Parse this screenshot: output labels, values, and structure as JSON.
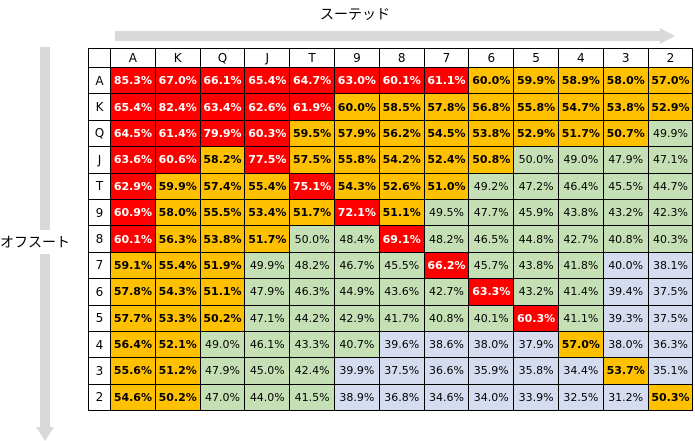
{
  "suited_label": "スーテッド",
  "offsuit_label": "オフスート",
  "columns": [
    "A",
    "K",
    "Q",
    "J",
    "T",
    "9",
    "8",
    "7",
    "6",
    "5",
    "4",
    "3",
    "2"
  ],
  "rows": [
    "A",
    "K",
    "Q",
    "J",
    "T",
    "9",
    "8",
    "7",
    "6",
    "5",
    "4",
    "3",
    "2"
  ],
  "colors": {
    "red": "#ff0000",
    "orange": "#ffc000",
    "green": "#c5e0b4",
    "blue": "#d6dcf0"
  },
  "cells": [
    [
      [
        "85.3%",
        "red"
      ],
      [
        "67.0%",
        "red"
      ],
      [
        "66.1%",
        "red"
      ],
      [
        "65.4%",
        "red"
      ],
      [
        "64.7%",
        "red"
      ],
      [
        "63.0%",
        "red"
      ],
      [
        "60.1%",
        "red"
      ],
      [
        "61.1%",
        "red"
      ],
      [
        "60.0%",
        "org"
      ],
      [
        "59.9%",
        "org"
      ],
      [
        "58.9%",
        "org"
      ],
      [
        "58.0%",
        "org"
      ],
      [
        "57.0%",
        "org"
      ]
    ],
    [
      [
        "65.4%",
        "red"
      ],
      [
        "82.4%",
        "red"
      ],
      [
        "63.4%",
        "red"
      ],
      [
        "62.6%",
        "red"
      ],
      [
        "61.9%",
        "red"
      ],
      [
        "60.0%",
        "org"
      ],
      [
        "58.5%",
        "org"
      ],
      [
        "57.8%",
        "org"
      ],
      [
        "56.8%",
        "org"
      ],
      [
        "55.8%",
        "org"
      ],
      [
        "54.7%",
        "org"
      ],
      [
        "53.8%",
        "org"
      ],
      [
        "52.9%",
        "org"
      ]
    ],
    [
      [
        "64.5%",
        "red"
      ],
      [
        "61.4%",
        "red"
      ],
      [
        "79.9%",
        "red"
      ],
      [
        "60.3%",
        "red"
      ],
      [
        "59.5%",
        "org"
      ],
      [
        "57.9%",
        "org"
      ],
      [
        "56.2%",
        "org"
      ],
      [
        "54.5%",
        "org"
      ],
      [
        "53.8%",
        "org"
      ],
      [
        "52.9%",
        "org"
      ],
      [
        "51.7%",
        "org"
      ],
      [
        "50.7%",
        "org"
      ],
      [
        "49.9%",
        "grn"
      ]
    ],
    [
      [
        "63.6%",
        "red"
      ],
      [
        "60.6%",
        "red"
      ],
      [
        "58.2%",
        "org"
      ],
      [
        "77.5%",
        "red"
      ],
      [
        "57.5%",
        "org"
      ],
      [
        "55.8%",
        "org"
      ],
      [
        "54.2%",
        "org"
      ],
      [
        "52.4%",
        "org"
      ],
      [
        "50.8%",
        "org"
      ],
      [
        "50.0%",
        "grn"
      ],
      [
        "49.0%",
        "grn"
      ],
      [
        "47.9%",
        "grn"
      ],
      [
        "47.1%",
        "grn"
      ]
    ],
    [
      [
        "62.9%",
        "red"
      ],
      [
        "59.9%",
        "org"
      ],
      [
        "57.4%",
        "org"
      ],
      [
        "55.4%",
        "org"
      ],
      [
        "75.1%",
        "red"
      ],
      [
        "54.3%",
        "org"
      ],
      [
        "52.6%",
        "org"
      ],
      [
        "51.0%",
        "org"
      ],
      [
        "49.2%",
        "grn"
      ],
      [
        "47.2%",
        "grn"
      ],
      [
        "46.4%",
        "grn"
      ],
      [
        "45.5%",
        "grn"
      ],
      [
        "44.7%",
        "grn"
      ]
    ],
    [
      [
        "60.9%",
        "red"
      ],
      [
        "58.0%",
        "org"
      ],
      [
        "55.5%",
        "org"
      ],
      [
        "53.4%",
        "org"
      ],
      [
        "51.7%",
        "org"
      ],
      [
        "72.1%",
        "red"
      ],
      [
        "51.1%",
        "org"
      ],
      [
        "49.5%",
        "grn"
      ],
      [
        "47.7%",
        "grn"
      ],
      [
        "45.9%",
        "grn"
      ],
      [
        "43.8%",
        "grn"
      ],
      [
        "43.2%",
        "grn"
      ],
      [
        "42.3%",
        "grn"
      ]
    ],
    [
      [
        "60.1%",
        "red"
      ],
      [
        "56.3%",
        "org"
      ],
      [
        "53.8%",
        "org"
      ],
      [
        "51.7%",
        "org"
      ],
      [
        "50.0%",
        "grn"
      ],
      [
        "48.4%",
        "grn"
      ],
      [
        "69.1%",
        "red"
      ],
      [
        "48.2%",
        "grn"
      ],
      [
        "46.5%",
        "grn"
      ],
      [
        "44.8%",
        "grn"
      ],
      [
        "42.7%",
        "grn"
      ],
      [
        "40.8%",
        "grn"
      ],
      [
        "40.3%",
        "grn"
      ]
    ],
    [
      [
        "59.1%",
        "org"
      ],
      [
        "55.4%",
        "org"
      ],
      [
        "51.9%",
        "org"
      ],
      [
        "49.9%",
        "grn"
      ],
      [
        "48.2%",
        "grn"
      ],
      [
        "46.7%",
        "grn"
      ],
      [
        "45.5%",
        "grn"
      ],
      [
        "66.2%",
        "red"
      ],
      [
        "45.7%",
        "grn"
      ],
      [
        "43.8%",
        "grn"
      ],
      [
        "41.8%",
        "grn"
      ],
      [
        "40.0%",
        "blu"
      ],
      [
        "38.1%",
        "blu"
      ]
    ],
    [
      [
        "57.8%",
        "org"
      ],
      [
        "54.3%",
        "org"
      ],
      [
        "51.1%",
        "org"
      ],
      [
        "47.9%",
        "grn"
      ],
      [
        "46.3%",
        "grn"
      ],
      [
        "44.9%",
        "grn"
      ],
      [
        "43.6%",
        "grn"
      ],
      [
        "42.7%",
        "grn"
      ],
      [
        "63.3%",
        "red"
      ],
      [
        "43.2%",
        "grn"
      ],
      [
        "41.4%",
        "grn"
      ],
      [
        "39.4%",
        "blu"
      ],
      [
        "37.5%",
        "blu"
      ]
    ],
    [
      [
        "57.7%",
        "org"
      ],
      [
        "53.3%",
        "org"
      ],
      [
        "50.2%",
        "org"
      ],
      [
        "47.1%",
        "grn"
      ],
      [
        "44.2%",
        "grn"
      ],
      [
        "42.9%",
        "grn"
      ],
      [
        "41.7%",
        "grn"
      ],
      [
        "40.8%",
        "grn"
      ],
      [
        "40.1%",
        "grn"
      ],
      [
        "60.3%",
        "red"
      ],
      [
        "41.1%",
        "grn"
      ],
      [
        "39.3%",
        "blu"
      ],
      [
        "37.5%",
        "blu"
      ]
    ],
    [
      [
        "56.4%",
        "org"
      ],
      [
        "52.1%",
        "org"
      ],
      [
        "49.0%",
        "grn"
      ],
      [
        "46.1%",
        "grn"
      ],
      [
        "43.3%",
        "grn"
      ],
      [
        "40.7%",
        "grn"
      ],
      [
        "39.6%",
        "blu"
      ],
      [
        "38.6%",
        "blu"
      ],
      [
        "38.0%",
        "blu"
      ],
      [
        "37.9%",
        "blu"
      ],
      [
        "57.0%",
        "org"
      ],
      [
        "38.0%",
        "blu"
      ],
      [
        "36.3%",
        "blu"
      ]
    ],
    [
      [
        "55.6%",
        "org"
      ],
      [
        "51.2%",
        "org"
      ],
      [
        "47.9%",
        "grn"
      ],
      [
        "45.0%",
        "grn"
      ],
      [
        "42.4%",
        "grn"
      ],
      [
        "39.9%",
        "blu"
      ],
      [
        "37.5%",
        "blu"
      ],
      [
        "36.6%",
        "blu"
      ],
      [
        "35.9%",
        "blu"
      ],
      [
        "35.8%",
        "blu"
      ],
      [
        "34.4%",
        "blu"
      ],
      [
        "53.7%",
        "org"
      ],
      [
        "35.1%",
        "blu"
      ]
    ],
    [
      [
        "54.6%",
        "org"
      ],
      [
        "50.2%",
        "org"
      ],
      [
        "47.0%",
        "grn"
      ],
      [
        "44.0%",
        "grn"
      ],
      [
        "41.5%",
        "grn"
      ],
      [
        "38.9%",
        "blu"
      ],
      [
        "36.8%",
        "blu"
      ],
      [
        "34.6%",
        "blu"
      ],
      [
        "34.0%",
        "blu"
      ],
      [
        "33.9%",
        "blu"
      ],
      [
        "32.5%",
        "blu"
      ],
      [
        "31.2%",
        "blu"
      ],
      [
        "50.3%",
        "org"
      ]
    ]
  ]
}
